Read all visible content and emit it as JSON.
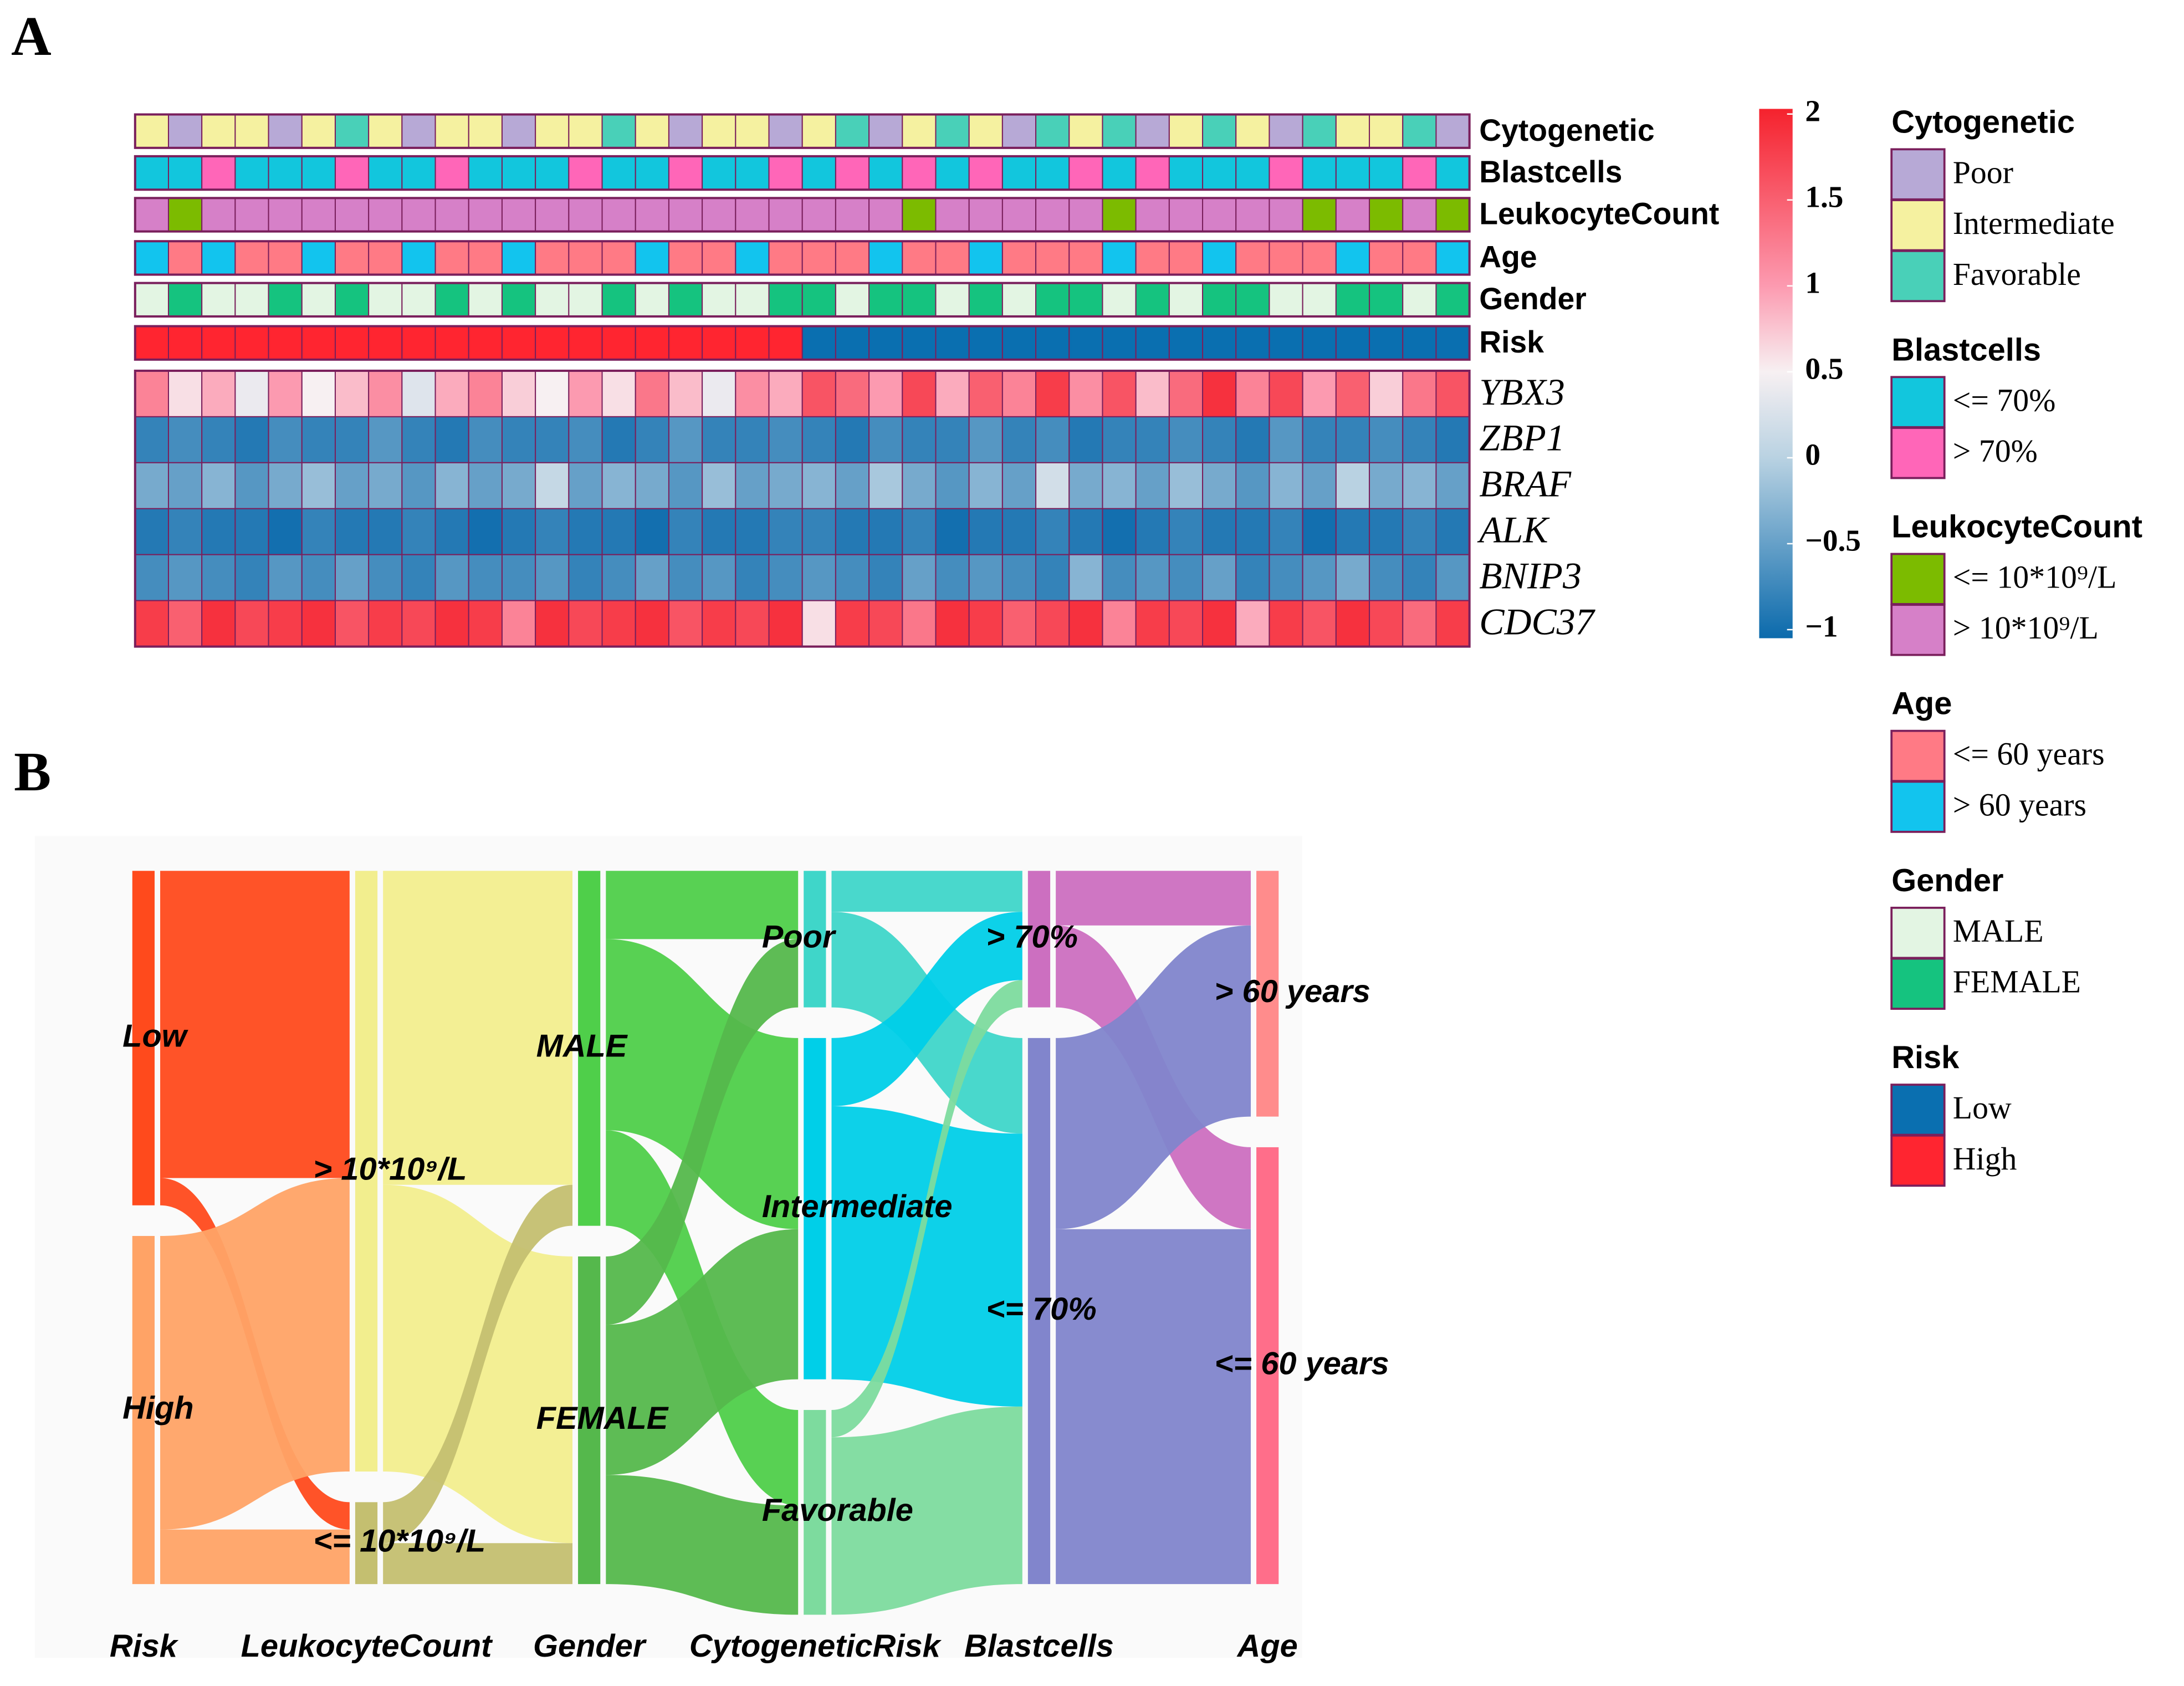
{
  "panels": [
    "A",
    "B"
  ],
  "heatmap": {
    "annotations": [
      {
        "title": "Cytogenetic",
        "levels": [
          {
            "label": "Poor",
            "color": "#b7a9d6"
          },
          {
            "label": "Intermediate",
            "color": "#f5f1a0"
          },
          {
            "label": "Favorable",
            "color": "#49d0b8"
          }
        ],
        "values": [
          1,
          0,
          1,
          1,
          0,
          1,
          2,
          1,
          0,
          1,
          1,
          0,
          1,
          1,
          2,
          1,
          0,
          1,
          1,
          0,
          1,
          2,
          0,
          1,
          2,
          1,
          0,
          2,
          1,
          2,
          0,
          1,
          2,
          1,
          0,
          2,
          1,
          1,
          2,
          0
        ]
      },
      {
        "title": "Blastcells",
        "levels": [
          {
            "label": "<= 70%",
            "color": "#12c6dd"
          },
          {
            "label": "> 70%",
            "color": "#ff66b8"
          }
        ],
        "values": [
          0,
          0,
          1,
          0,
          0,
          0,
          1,
          0,
          0,
          1,
          0,
          0,
          0,
          1,
          0,
          0,
          1,
          0,
          0,
          1,
          0,
          1,
          0,
          1,
          0,
          1,
          0,
          0,
          1,
          0,
          1,
          0,
          0,
          0,
          1,
          0,
          0,
          0,
          1,
          0
        ]
      },
      {
        "title": "LeukocyteCount",
        "levels": [
          {
            "label": "<= 10*10⁹/L",
            "color": "#7cbb00"
          },
          {
            "label": "> 10*10⁹/L",
            "color": "#d680c8"
          }
        ],
        "values": [
          1,
          0,
          1,
          1,
          1,
          1,
          1,
          1,
          1,
          1,
          1,
          1,
          1,
          1,
          1,
          1,
          1,
          1,
          1,
          1,
          1,
          1,
          1,
          0,
          1,
          1,
          1,
          1,
          1,
          0,
          1,
          1,
          1,
          1,
          1,
          0,
          1,
          0,
          1,
          0
        ]
      },
      {
        "title": "Age",
        "levels": [
          {
            "label": "<= 60 years",
            "color": "#ff7a85"
          },
          {
            "label": "> 60 years",
            "color": "#12c4ee"
          }
        ],
        "values": [
          1,
          0,
          1,
          0,
          0,
          1,
          0,
          0,
          1,
          0,
          0,
          1,
          0,
          0,
          0,
          1,
          0,
          0,
          1,
          0,
          0,
          0,
          1,
          0,
          0,
          1,
          0,
          0,
          0,
          1,
          0,
          0,
          1,
          0,
          0,
          0,
          1,
          0,
          0,
          1
        ]
      },
      {
        "title": "Gender",
        "levels": [
          {
            "label": "MALE",
            "color": "#e3f5e3"
          },
          {
            "label": "FEMALE",
            "color": "#15c37f"
          }
        ],
        "values": [
          0,
          1,
          0,
          0,
          1,
          0,
          1,
          0,
          0,
          1,
          0,
          1,
          0,
          0,
          1,
          0,
          1,
          0,
          0,
          1,
          1,
          0,
          1,
          1,
          0,
          1,
          0,
          1,
          1,
          0,
          1,
          0,
          1,
          1,
          0,
          0,
          1,
          1,
          0,
          1
        ]
      },
      {
        "title": "Risk",
        "levels": [
          {
            "label": "Low",
            "color": "#0a6fb0"
          },
          {
            "label": "High",
            "color": "#ff2530"
          }
        ],
        "values": [
          1,
          1,
          1,
          1,
          1,
          1,
          1,
          1,
          1,
          1,
          1,
          1,
          1,
          1,
          1,
          1,
          1,
          1,
          1,
          1,
          0,
          0,
          0,
          0,
          0,
          0,
          0,
          0,
          0,
          0,
          0,
          0,
          0,
          0,
          0,
          0,
          0,
          0,
          0,
          0
        ]
      }
    ],
    "genes": [
      {
        "name": "YBX3",
        "values": [
          1.2,
          0.6,
          0.9,
          0.4,
          1.0,
          0.5,
          0.8,
          1.1,
          0.3,
          0.9,
          1.2,
          0.7,
          0.5,
          1.0,
          0.6,
          1.3,
          0.8,
          0.4,
          1.1,
          0.9,
          1.6,
          1.4,
          1.0,
          1.7,
          0.9,
          1.5,
          1.2,
          1.8,
          1.1,
          1.6,
          0.8,
          1.4,
          1.9,
          1.2,
          1.7,
          1.0,
          1.5,
          0.7,
          1.3,
          1.6
        ]
      },
      {
        "name": "ZBP1",
        "values": [
          -0.8,
          -0.7,
          -0.8,
          -0.9,
          -0.7,
          -0.8,
          -0.8,
          -0.6,
          -0.8,
          -0.9,
          -0.7,
          -0.8,
          -0.8,
          -0.7,
          -0.9,
          -0.8,
          -0.6,
          -0.8,
          -0.8,
          -0.7,
          -0.8,
          -0.9,
          -0.7,
          -0.8,
          -0.8,
          -0.6,
          -0.8,
          -0.7,
          -0.9,
          -0.8,
          -0.8,
          -0.7,
          -0.8,
          -0.9,
          -0.6,
          -0.8,
          -0.8,
          -0.7,
          -0.8,
          -0.9
        ]
      },
      {
        "name": "BRAF",
        "values": [
          -0.4,
          -0.5,
          -0.3,
          -0.6,
          -0.4,
          -0.2,
          -0.5,
          -0.4,
          -0.6,
          -0.3,
          -0.5,
          -0.4,
          0.1,
          -0.5,
          -0.3,
          -0.4,
          -0.6,
          -0.2,
          -0.5,
          -0.4,
          -0.3,
          -0.5,
          -0.1,
          -0.4,
          -0.6,
          -0.3,
          -0.5,
          0.2,
          -0.4,
          -0.3,
          -0.5,
          -0.2,
          -0.4,
          -0.6,
          -0.3,
          -0.5,
          0.0,
          -0.4,
          -0.3,
          -0.5
        ]
      },
      {
        "name": "ALK",
        "values": [
          -0.9,
          -0.8,
          -0.9,
          -0.9,
          -1.0,
          -0.8,
          -0.9,
          -0.9,
          -0.8,
          -0.9,
          -1.0,
          -0.9,
          -0.8,
          -0.9,
          -0.9,
          -1.0,
          -0.8,
          -0.9,
          -0.9,
          -0.8,
          -0.8,
          -0.9,
          -0.9,
          -0.8,
          -1.0,
          -0.9,
          -0.9,
          -0.8,
          -0.9,
          -1.0,
          -0.9,
          -0.8,
          -0.9,
          -0.9,
          -0.8,
          -1.0,
          -0.9,
          -0.9,
          -0.8,
          -0.9
        ]
      },
      {
        "name": "BNIP3",
        "values": [
          -0.7,
          -0.6,
          -0.7,
          -0.8,
          -0.6,
          -0.7,
          -0.5,
          -0.7,
          -0.8,
          -0.6,
          -0.7,
          -0.7,
          -0.6,
          -0.8,
          -0.7,
          -0.5,
          -0.7,
          -0.6,
          -0.8,
          -0.7,
          -0.6,
          -0.7,
          -0.8,
          -0.5,
          -0.7,
          -0.6,
          -0.7,
          -0.8,
          -0.3,
          -0.7,
          -0.6,
          -0.7,
          -0.5,
          -0.8,
          -0.7,
          -0.6,
          -0.4,
          -0.7,
          -0.8,
          -0.6
        ]
      },
      {
        "name": "CDC37",
        "values": [
          1.8,
          1.5,
          1.9,
          1.7,
          1.8,
          1.9,
          1.6,
          1.8,
          1.7,
          1.9,
          1.8,
          1.2,
          1.9,
          1.7,
          1.8,
          1.9,
          1.6,
          1.8,
          1.7,
          1.9,
          0.6,
          1.8,
          1.7,
          1.3,
          1.9,
          1.8,
          1.5,
          1.7,
          1.9,
          1.2,
          1.8,
          1.7,
          1.9,
          0.9,
          1.8,
          1.6,
          1.9,
          1.7,
          1.4,
          1.8
        ]
      }
    ],
    "clim": [
      -1.05,
      2.03
    ],
    "colorscale": [
      [
        -1.05,
        "#0b6aac"
      ],
      [
        0,
        "#b9d2e2"
      ],
      [
        0.5,
        "#f7f0f2"
      ],
      [
        1,
        "#fc9ab0"
      ],
      [
        2.03,
        "#f5222d"
      ]
    ],
    "cticks": [
      2,
      1.5,
      1,
      0.5,
      0,
      {
        "value": -0.5,
        "label": "−0.5"
      },
      {
        "value": -1,
        "label": "−1"
      }
    ]
  },
  "sankey": {
    "axes": [
      {
        "name": "Risk",
        "nodes": [
          {
            "label": "Low",
            "color": "#ff4a1c"
          },
          {
            "label": "High",
            "color": "#ffa366"
          }
        ]
      },
      {
        "name": "LeukocyteCount",
        "nodes": [
          {
            "label": "> 10*10⁹/L",
            "color": "#f2ee8e"
          },
          {
            "label": "<= 10*10⁹/L",
            "color": "#c4bf70"
          }
        ]
      },
      {
        "name": "Gender",
        "nodes": [
          {
            "label": "MALE",
            "color": "#4fcf4a"
          },
          {
            "label": "FEMALE",
            "color": "#55b84c"
          }
        ]
      },
      {
        "name": "CytogeneticRisk",
        "nodes": [
          {
            "label": "Poor",
            "color": "#3fd6c9"
          },
          {
            "label": "Intermediate",
            "color": "#00cfe8"
          },
          {
            "label": "Favorable",
            "color": "#7ddb9e"
          }
        ]
      },
      {
        "name": "Blastcells",
        "nodes": [
          {
            "label": "> 70%",
            "color": "#cc6fc0"
          },
          {
            "label": "<= 70%",
            "color": "#8185cc"
          }
        ]
      },
      {
        "name": "Age",
        "nodes": [
          {
            "label": "> 60 years",
            "color": "#ff8c8c"
          },
          {
            "label": "<= 60 years",
            "color": "#ff6e8a"
          }
        ]
      }
    ],
    "links": [
      [
        {
          "source": 0,
          "target": 0,
          "value": 45
        },
        {
          "source": 0,
          "target": 1,
          "value": 4
        },
        {
          "source": 1,
          "target": 0,
          "value": 43
        },
        {
          "source": 1,
          "target": 1,
          "value": 8
        }
      ],
      [
        {
          "source": 0,
          "target": 0,
          "value": 46
        },
        {
          "source": 0,
          "target": 1,
          "value": 42
        },
        {
          "source": 1,
          "target": 0,
          "value": 6
        },
        {
          "source": 1,
          "target": 1,
          "value": 6
        }
      ],
      [
        {
          "source": 0,
          "target": 0,
          "value": 10
        },
        {
          "source": 0,
          "target": 1,
          "value": 28
        },
        {
          "source": 0,
          "target": 2,
          "value": 14
        },
        {
          "source": 1,
          "target": 0,
          "value": 10
        },
        {
          "source": 1,
          "target": 1,
          "value": 22
        },
        {
          "source": 1,
          "target": 2,
          "value": 16
        }
      ],
      [
        {
          "source": 0,
          "target": 0,
          "value": 6
        },
        {
          "source": 0,
          "target": 1,
          "value": 14
        },
        {
          "source": 1,
          "target": 0,
          "value": 10
        },
        {
          "source": 1,
          "target": 1,
          "value": 40
        },
        {
          "source": 2,
          "target": 0,
          "value": 4
        },
        {
          "source": 2,
          "target": 1,
          "value": 26
        }
      ],
      [
        {
          "source": 0,
          "target": 0,
          "value": 8
        },
        {
          "source": 0,
          "target": 1,
          "value": 12
        },
        {
          "source": 1,
          "target": 0,
          "value": 28
        },
        {
          "source": 1,
          "target": 1,
          "value": 52
        }
      ]
    ]
  }
}
